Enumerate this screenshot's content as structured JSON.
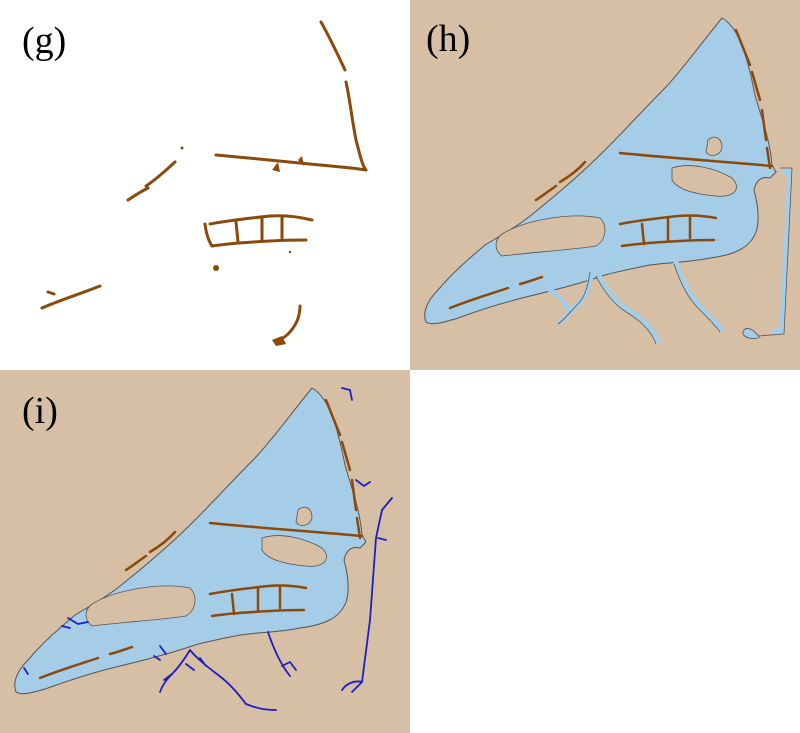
{
  "panels": [
    {
      "id": "g",
      "label": "(g)"
    },
    {
      "id": "h",
      "label": "(h)"
    },
    {
      "id": "i",
      "label": "(i)"
    }
  ],
  "colors": {
    "land": "#d7bfa6",
    "water": "#a6cde8",
    "shoreline": "#555555",
    "channel": "#8b4a0c",
    "network": "#1f1fc0",
    "background": "#ffffff"
  }
}
